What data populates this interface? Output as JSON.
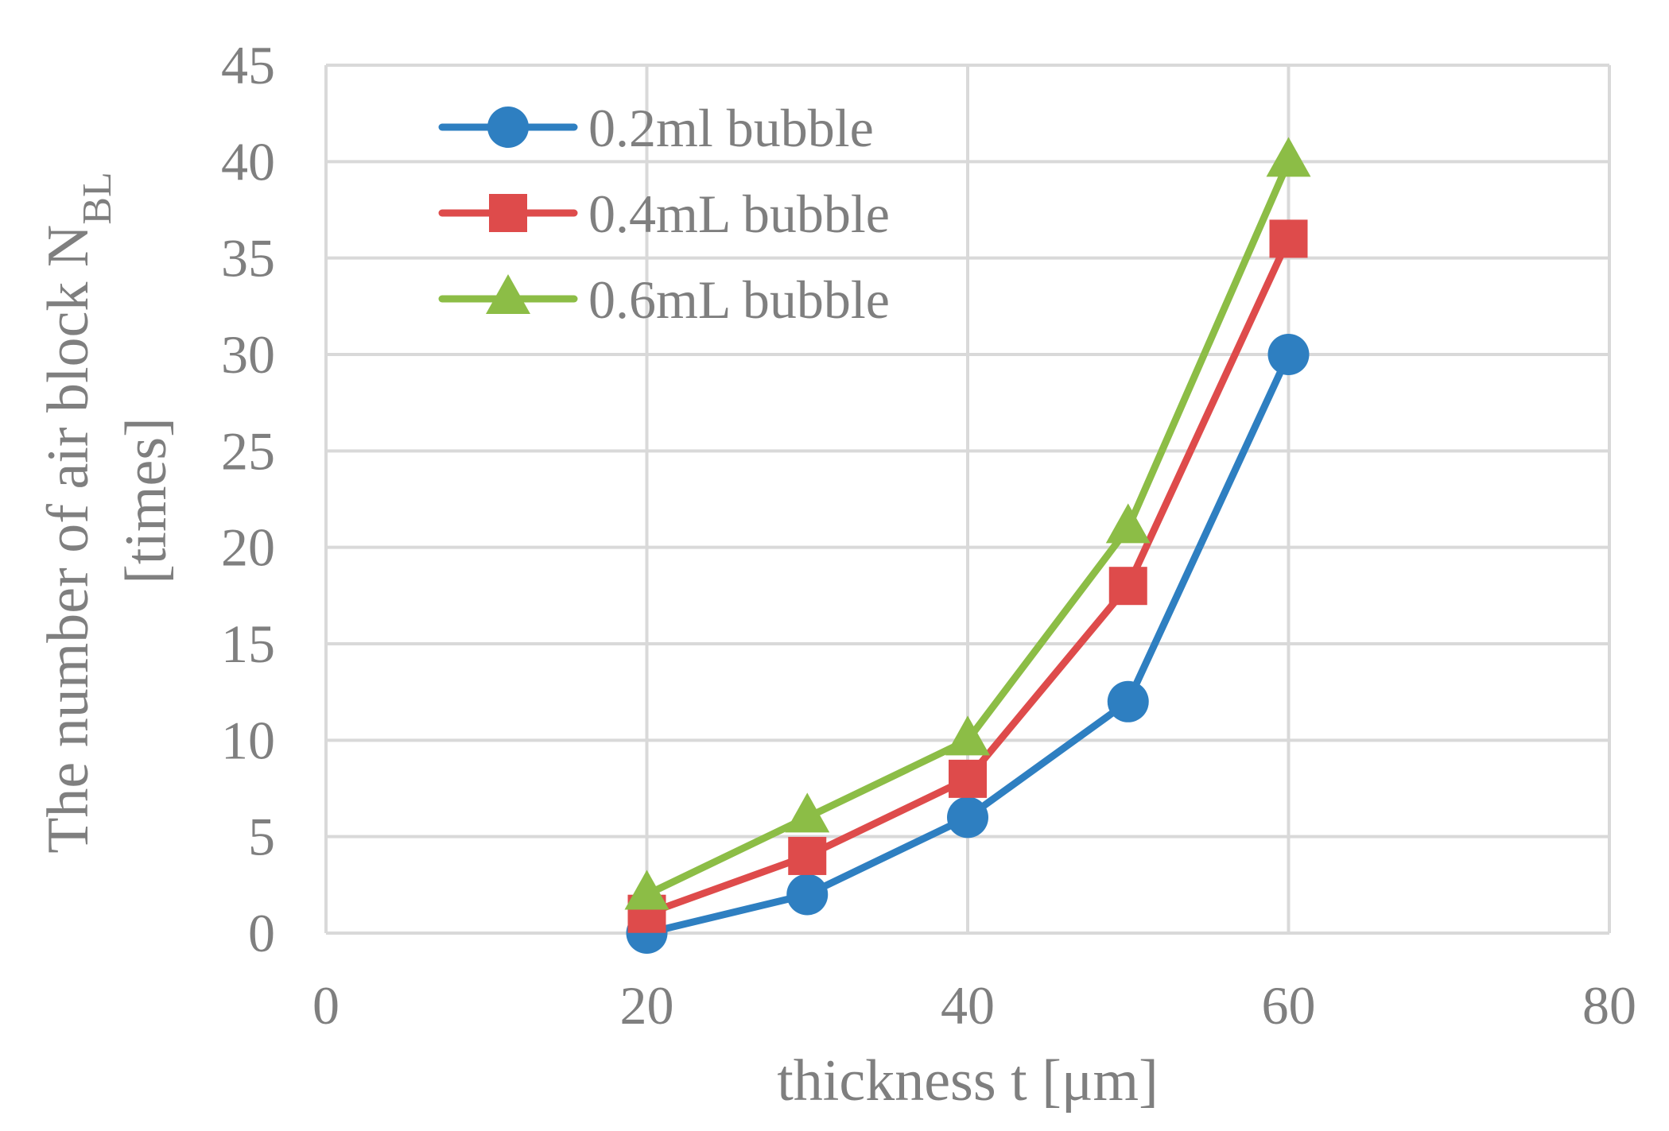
{
  "chart_data": {
    "type": "line",
    "title": "",
    "xlabel": "thickness t [μm]",
    "ylabel": {
      "line1_main": "The number of air block N",
      "line1_sub": "BL",
      "line2": "[times]"
    },
    "xlim": [
      0,
      80
    ],
    "ylim": [
      0,
      45
    ],
    "x_ticks": [
      0,
      20,
      40,
      60,
      80
    ],
    "y_ticks": [
      0,
      5,
      10,
      15,
      20,
      25,
      30,
      35,
      40,
      45
    ],
    "grid": true,
    "legend_position": "top-left",
    "x": [
      20,
      30,
      40,
      50,
      60
    ],
    "series": [
      {
        "name": "0.2ml bubble",
        "marker": "circle",
        "color": "#2e7fc1",
        "values": [
          0,
          2,
          6,
          12,
          30
        ]
      },
      {
        "name": "0.4mL bubble",
        "marker": "square",
        "color": "#de4b4b",
        "values": [
          1,
          4,
          8,
          18,
          36
        ]
      },
      {
        "name": "0.6mL bubble",
        "marker": "triangle",
        "color": "#8cbd46",
        "values": [
          2,
          6,
          10,
          21,
          40
        ]
      }
    ]
  }
}
